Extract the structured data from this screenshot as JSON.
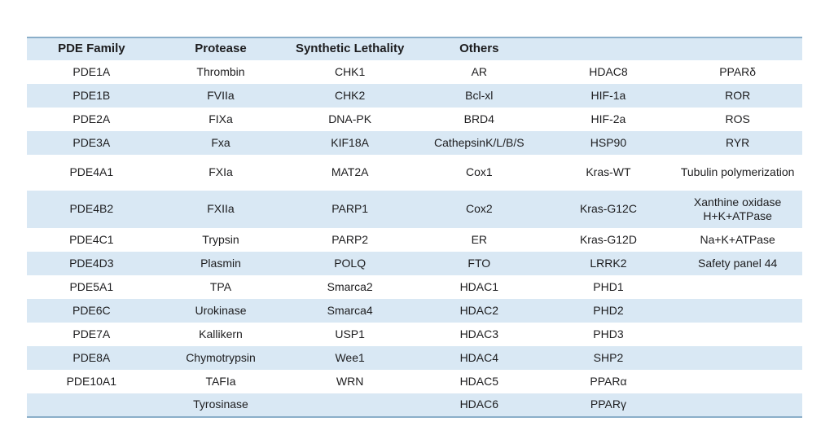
{
  "page": {
    "background_color": "#ffffff"
  },
  "table": {
    "accent_border_color": "#8aaec9",
    "stripe_color": "#d9e8f4",
    "text_color": "#1d1d1f",
    "columns": [
      "PDE Family",
      "Protease",
      "Synthetic Lethality",
      "Others",
      "",
      ""
    ],
    "rows": [
      [
        "PDE1A",
        "Thrombin",
        "CHK1",
        "AR",
        "HDAC8",
        "PPARδ"
      ],
      [
        "PDE1B",
        "FVIIa",
        "CHK2",
        "Bcl-xl",
        "HIF-1a",
        "ROR"
      ],
      [
        "PDE2A",
        "FIXa",
        "DNA-PK",
        "BRD4",
        "HIF-2a",
        "ROS"
      ],
      [
        "PDE3A",
        "Fxa",
        "KIF18A",
        "CathepsinK/L/B/S",
        "HSP90",
        "RYR"
      ],
      [
        "PDE4A1",
        "FXIa",
        "MAT2A",
        "Cox1",
        "Kras-WT",
        "Tubulin polymerization"
      ],
      [
        "PDE4B2",
        "FXIIa",
        "PARP1",
        "Cox2",
        "Kras-G12C",
        "Xanthine oxidase\nH+K+ATPase"
      ],
      [
        "PDE4C1",
        "Trypsin",
        "PARP2",
        "ER",
        "Kras-G12D",
        "Na+K+ATPase"
      ],
      [
        "PDE4D3",
        "Plasmin",
        "POLQ",
        "FTO",
        "LRRK2",
        "Safety panel 44"
      ],
      [
        "PDE5A1",
        "TPA",
        "Smarca2",
        "HDAC1",
        "PHD1",
        ""
      ],
      [
        "PDE6C",
        "Urokinase",
        "Smarca4",
        "HDAC2",
        "PHD2",
        ""
      ],
      [
        "PDE7A",
        "Kallikern",
        "USP1",
        "HDAC3",
        "PHD3",
        ""
      ],
      [
        "PDE8A",
        "Chymotrypsin",
        "Wee1",
        "HDAC4",
        "SHP2",
        ""
      ],
      [
        "PDE10A1",
        "TAFIa",
        "WRN",
        "HDAC5",
        "PPARα",
        ""
      ],
      [
        "",
        "Tyrosinase",
        "",
        "HDAC6",
        "PPARγ",
        ""
      ]
    ]
  }
}
